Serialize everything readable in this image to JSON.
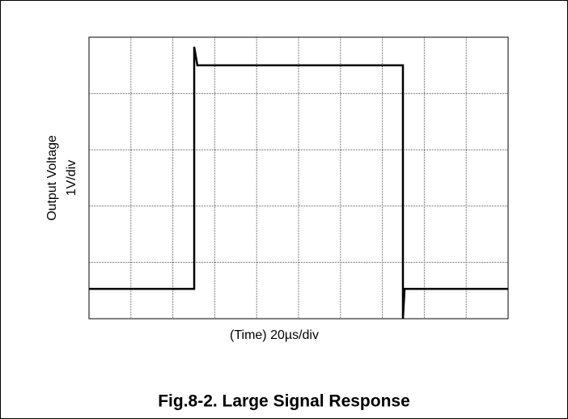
{
  "chart_data": {
    "type": "line",
    "title": "Fig.8-2. Large Signal Response",
    "xlabel": "(Time) 20µs/div",
    "ylabel": [
      "Output Voltage",
      "1V/div"
    ],
    "x": [
      0,
      50.2,
      50.2,
      51.7,
      149.8,
      149.8,
      150.6,
      200
    ],
    "series": [
      {
        "color": "#000000",
        "values": [
          0.53,
          0.53,
          4.83,
          4.5,
          4.5,
          0,
          0.53,
          0.53
        ]
      }
    ],
    "xlim": [
      0,
      200
    ],
    "xticks": [
      0,
      20,
      40,
      60,
      80,
      100,
      120,
      140,
      160,
      180,
      200
    ],
    "ylim": [
      0,
      5
    ],
    "yticks": [
      0,
      1,
      2,
      3,
      4,
      5
    ],
    "grid": true
  }
}
